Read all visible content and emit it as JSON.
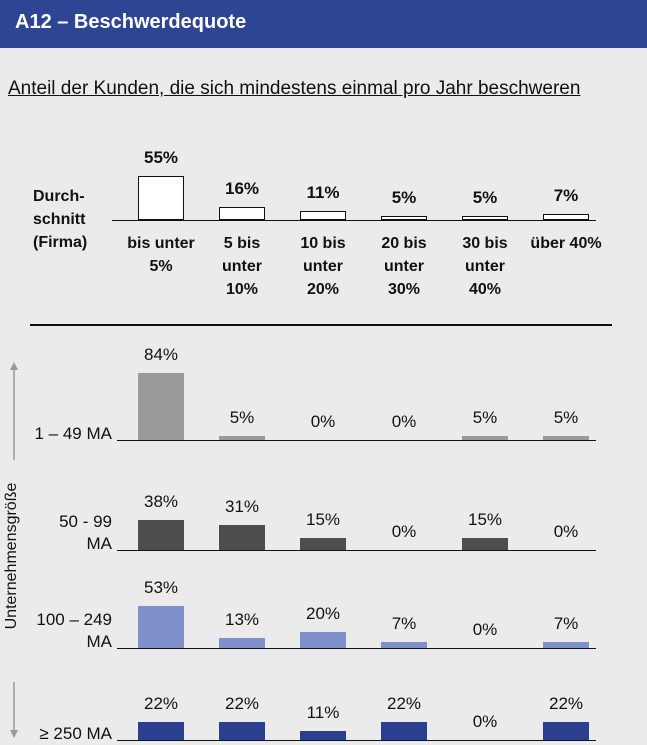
{
  "chart_data": {
    "type": "bar",
    "title": "A12 – Beschwerdequote",
    "subtitle": "Anteil der Kunden, die sich mindestens einmal pro Jahr beschweren",
    "y_label": "Unternehmensgröße",
    "categories": [
      "bis unter 5%",
      "5 bis unter 10%",
      "10 bis unter 20%",
      "20 bis unter 30%",
      "30 bis unter 40%",
      "über 40%"
    ],
    "series": [
      {
        "name": "Durch-schnitt (Firma)",
        "color": "#ffffff",
        "values": [
          55,
          16,
          11,
          5,
          5,
          7
        ],
        "value_labels": [
          "55%",
          "16%",
          "11%",
          "5%",
          "5%",
          "7%"
        ]
      },
      {
        "name": "1 – 49 MA",
        "color": "#999999",
        "values": [
          84,
          5,
          0,
          0,
          5,
          5
        ],
        "value_labels": [
          "84%",
          "5%",
          "0%",
          "0%",
          "5%",
          "5%"
        ]
      },
      {
        "name": "50 - 99 MA",
        "color": "#4d4d4d",
        "values": [
          38,
          31,
          15,
          0,
          15,
          0
        ],
        "value_labels": [
          "38%",
          "31%",
          "15%",
          "0%",
          "15%",
          "0%"
        ]
      },
      {
        "name": "100 – 249 MA",
        "color": "#8090c8",
        "values": [
          53,
          13,
          20,
          7,
          0,
          7
        ],
        "value_labels": [
          "53%",
          "13%",
          "20%",
          "7%",
          "0%",
          "7%"
        ]
      },
      {
        "name": "≥ 250 MA",
        "color": "#2a3f8f",
        "values": [
          22,
          22,
          11,
          22,
          0,
          22
        ],
        "value_labels": [
          "22%",
          "22%",
          "11%",
          "22%",
          "0%",
          "22%"
        ]
      }
    ]
  }
}
